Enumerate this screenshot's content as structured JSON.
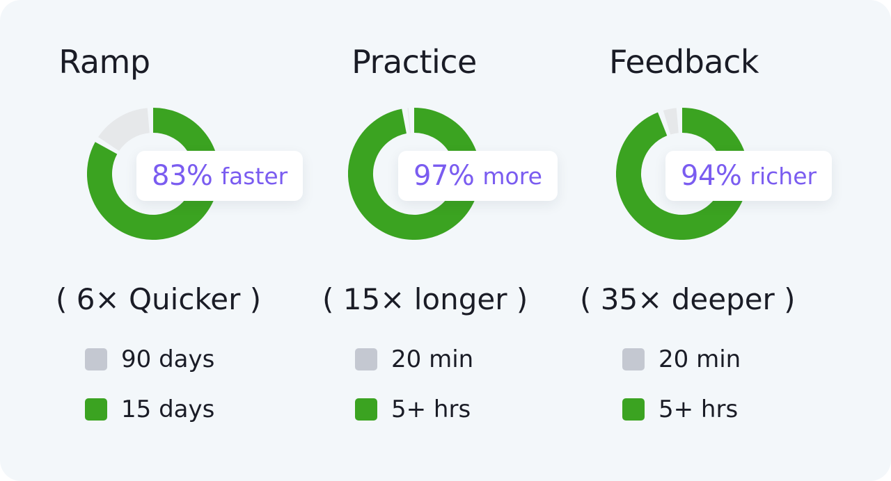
{
  "colors": {
    "accent_green": "#3ba321",
    "track_gray": "#e6e8ea",
    "legend_gray": "#c4c8d1",
    "text_purple": "#7a5cf0"
  },
  "columns": [
    {
      "title": "Ramp",
      "badge_pct": "83%",
      "badge_word": "faster",
      "multiplier": "( 6× Quicker )",
      "legend": [
        {
          "color": "gray",
          "label": "90 days"
        },
        {
          "color": "green",
          "label": "15 days"
        }
      ]
    },
    {
      "title": "Practice",
      "badge_pct": "97%",
      "badge_word": "more",
      "multiplier": "( 15× longer )",
      "legend": [
        {
          "color": "gray",
          "label": "20 min"
        },
        {
          "color": "green",
          "label": "5+ hrs"
        }
      ]
    },
    {
      "title": "Feedback",
      "badge_pct": "94%",
      "badge_word": "richer",
      "multiplier": "( 35× deeper )",
      "legend": [
        {
          "color": "gray",
          "label": "20 min"
        },
        {
          "color": "green",
          "label": "5+ hrs"
        }
      ]
    }
  ],
  "chart_data": [
    {
      "type": "pie",
      "title": "Ramp",
      "categories": [
        "90 days",
        "15 days"
      ],
      "values": [
        17,
        83
      ],
      "unit": "%"
    },
    {
      "type": "pie",
      "title": "Practice",
      "categories": [
        "20 min",
        "5+ hrs"
      ],
      "values": [
        3,
        97
      ],
      "unit": "%"
    },
    {
      "type": "pie",
      "title": "Feedback",
      "categories": [
        "20 min",
        "5+ hrs"
      ],
      "values": [
        6,
        94
      ],
      "unit": "%"
    }
  ]
}
